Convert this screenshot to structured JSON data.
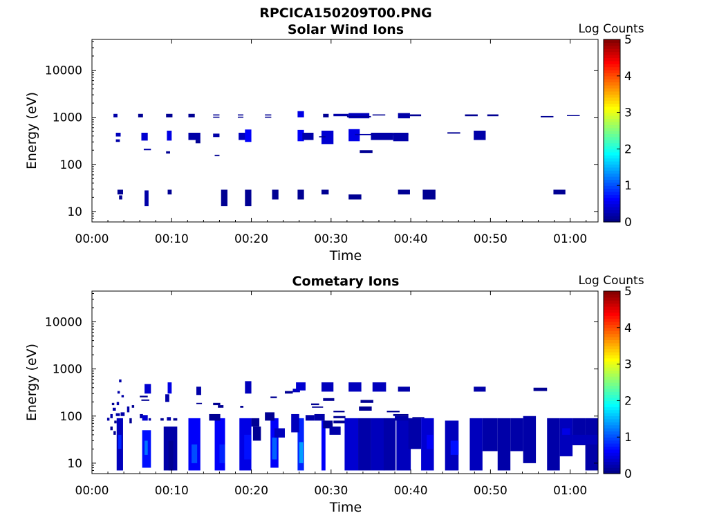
{
  "figure_title": "RPCICA150209T00.PNG",
  "chart_data": [
    {
      "type": "heatmap",
      "title": "Solar Wind Ions",
      "xlabel": "Time",
      "ylabel": "Energy (eV)",
      "yscale": "log",
      "xlim": [
        0,
        63.5
      ],
      "ylim": [
        6,
        45000
      ],
      "xticks": [
        "00:00",
        "00:10",
        "00:20",
        "00:30",
        "00:40",
        "00:50",
        "01:00"
      ],
      "yticks": [
        "10",
        "100",
        "1000",
        "10000"
      ],
      "colorbar": {
        "label": "Log Counts",
        "min": 0,
        "max": 5,
        "ticks": [
          "0",
          "1",
          "2",
          "3",
          "4",
          "5"
        ]
      },
      "grid": false,
      "cells": [
        [
          2.7,
          3.2,
          1000,
          1180,
          0.2
        ],
        [
          3.0,
          3.6,
          390,
          470,
          0.3
        ],
        [
          3.0,
          3.5,
          300,
          340,
          0.2
        ],
        [
          3.2,
          3.9,
          23,
          29,
          0.1
        ],
        [
          3.4,
          3.8,
          18,
          22,
          0.1
        ],
        [
          5.8,
          6.4,
          1000,
          1180,
          0.1
        ],
        [
          6.2,
          7.0,
          320,
          470,
          0.4
        ],
        [
          6.6,
          7.1,
          13,
          28,
          0.2
        ],
        [
          6.5,
          7.4,
          200,
          215,
          0.2
        ],
        [
          9.3,
          10.1,
          1000,
          1180,
          0.1
        ],
        [
          9.4,
          10.0,
          320,
          520,
          0.5
        ],
        [
          9.5,
          10.0,
          23,
          29,
          0.1
        ],
        [
          9.3,
          9.8,
          170,
          190,
          0.1
        ],
        [
          12.1,
          12.9,
          1000,
          1180,
          0.1
        ],
        [
          12.1,
          13.6,
          330,
          470,
          0.2
        ],
        [
          13.0,
          13.6,
          280,
          330,
          0.1
        ],
        [
          15.2,
          16.0,
          1100,
          1150,
          0.1
        ],
        [
          15.2,
          16.0,
          1000,
          1030,
          0.1
        ],
        [
          15.2,
          16.0,
          380,
          450,
          0.2
        ],
        [
          15.4,
          16.0,
          150,
          160,
          0.1
        ],
        [
          16.2,
          17.0,
          13,
          29,
          0.1
        ],
        [
          18.3,
          19.0,
          1100,
          1150,
          0.1
        ],
        [
          18.3,
          19.0,
          1000,
          1030,
          0.1
        ],
        [
          18.4,
          19.3,
          330,
          470,
          0.3
        ],
        [
          19.2,
          20.0,
          300,
          550,
          0.6
        ],
        [
          19.2,
          20.0,
          13,
          29,
          0.1
        ],
        [
          21.7,
          22.5,
          1100,
          1150,
          0.1
        ],
        [
          21.7,
          22.5,
          1000,
          1030,
          0.1
        ],
        [
          22.6,
          23.4,
          18,
          29,
          0.1
        ],
        [
          25.8,
          26.6,
          1000,
          1350,
          0.5
        ],
        [
          25.8,
          26.6,
          310,
          540,
          0.6
        ],
        [
          26.4,
          27.8,
          330,
          470,
          0.2
        ],
        [
          25.8,
          26.6,
          18,
          29,
          0.1
        ],
        [
          29.0,
          29.7,
          1000,
          1180,
          0.1
        ],
        [
          28.8,
          30.3,
          270,
          520,
          0.4
        ],
        [
          28.5,
          29.3,
          385,
          395,
          0.1
        ],
        [
          28.8,
          29.7,
          23,
          29,
          0.1
        ],
        [
          30.3,
          32.2,
          1050,
          1180,
          0.2
        ],
        [
          32.2,
          34.8,
          950,
          1230,
          0.3
        ],
        [
          32.0,
          35.0,
          1000,
          1060,
          0.1
        ],
        [
          32.2,
          33.6,
          310,
          560,
          0.5
        ],
        [
          33.0,
          39.7,
          420,
          440,
          0.2
        ],
        [
          33.6,
          35.2,
          175,
          200,
          0.1
        ],
        [
          32.2,
          33.8,
          18,
          23,
          0.1
        ],
        [
          35.2,
          36.8,
          1100,
          1150,
          0.1
        ],
        [
          35.0,
          37.8,
          330,
          470,
          0.2
        ],
        [
          37.8,
          39.7,
          310,
          470,
          0.2
        ],
        [
          38.4,
          39.9,
          950,
          1230,
          0.2
        ],
        [
          39.9,
          41.3,
          1050,
          1150,
          0.1
        ],
        [
          38.4,
          39.9,
          23,
          29,
          0.1
        ],
        [
          41.5,
          43.1,
          18,
          29,
          0.1
        ],
        [
          44.6,
          46.2,
          450,
          480,
          0.1
        ],
        [
          46.8,
          48.4,
          1050,
          1150,
          0.1
        ],
        [
          47.9,
          49.4,
          330,
          520,
          0.2
        ],
        [
          49.6,
          51.0,
          1050,
          1150,
          0.1
        ],
        [
          56.3,
          57.9,
          1000,
          1060,
          0.1
        ],
        [
          57.9,
          59.4,
          23,
          29,
          0.1
        ],
        [
          59.6,
          61.2,
          1060,
          1120,
          0.1
        ]
      ]
    },
    {
      "type": "heatmap",
      "title": "Cometary Ions",
      "xlabel": "Time",
      "ylabel": "Energy (eV)",
      "yscale": "log",
      "xlim": [
        0,
        63.5
      ],
      "ylim": [
        6,
        45000
      ],
      "xticks": [
        "00:00",
        "00:10",
        "00:20",
        "00:30",
        "00:40",
        "00:50",
        "01:00"
      ],
      "yticks": [
        "10",
        "100",
        "1000",
        "10000"
      ],
      "colorbar": {
        "label": "Log Counts",
        "min": 0,
        "max": 5,
        "ticks": [
          "0",
          "1",
          "2",
          "3",
          "4",
          "5"
        ]
      },
      "grid": false,
      "cells": [
        [
          1.9,
          2.2,
          80,
          92,
          0.2
        ],
        [
          2.3,
          2.6,
          90,
          110,
          0.2
        ],
        [
          2.6,
          3.0,
          130,
          150,
          0.2
        ],
        [
          2.8,
          3.1,
          70,
          80,
          0.1
        ],
        [
          3.1,
          3.4,
          170,
          200,
          0.2
        ],
        [
          3.2,
          3.5,
          300,
          340,
          0.2
        ],
        [
          3.4,
          3.7,
          520,
          600,
          0.2
        ],
        [
          3.7,
          4.0,
          250,
          280,
          0.2
        ],
        [
          2.5,
          2.8,
          170,
          190,
          0.1
        ],
        [
          2.3,
          2.6,
          50,
          60,
          0.1
        ],
        [
          2.7,
          3.0,
          40,
          48,
          0.1
        ],
        [
          3.1,
          3.9,
          7,
          90,
          0.3
        ],
        [
          3.3,
          3.7,
          20,
          40,
          0.8
        ],
        [
          3.6,
          4.1,
          100,
          120,
          0.2
        ],
        [
          3.0,
          3.5,
          100,
          115,
          0.2
        ],
        [
          4.4,
          4.7,
          120,
          160,
          0.2
        ],
        [
          4.7,
          5.0,
          70,
          90,
          0.1
        ],
        [
          5.0,
          5.3,
          150,
          170,
          0.1
        ],
        [
          6.6,
          7.4,
          300,
          480,
          0.4
        ],
        [
          6.0,
          7.0,
          250,
          270,
          0.1
        ],
        [
          6.2,
          7.2,
          210,
          225,
          0.1
        ],
        [
          6.0,
          6.4,
          90,
          110,
          0.2
        ],
        [
          6.3,
          7.0,
          80,
          105,
          0.4
        ],
        [
          7.1,
          7.4,
          80,
          90,
          0.2
        ],
        [
          6.3,
          7.4,
          8,
          50,
          0.7
        ],
        [
          6.6,
          7.0,
          15,
          30,
          1.2
        ],
        [
          9.2,
          9.7,
          200,
          290,
          0.2
        ],
        [
          9.5,
          10.0,
          300,
          520,
          0.5
        ],
        [
          9.4,
          9.9,
          80,
          95,
          0.2
        ],
        [
          10.2,
          10.7,
          80,
          90,
          0.1
        ],
        [
          8.6,
          9.0,
          80,
          90,
          0.1
        ],
        [
          9.0,
          10.7,
          7,
          60,
          0.2
        ],
        [
          9.6,
          10.2,
          7,
          30,
          0.1
        ],
        [
          12.1,
          13.6,
          7,
          90,
          0.6
        ],
        [
          12.5,
          13.2,
          10,
          25,
          1.0
        ],
        [
          13.1,
          13.7,
          280,
          420,
          0.2
        ],
        [
          13.1,
          13.8,
          180,
          190,
          0.1
        ],
        [
          15.2,
          16.1,
          170,
          190,
          0.1
        ],
        [
          15.4,
          16.7,
          7,
          90,
          0.6
        ],
        [
          16.0,
          16.7,
          10,
          25,
          0.8
        ],
        [
          15.8,
          16.5,
          150,
          170,
          0.1
        ],
        [
          14.7,
          16.1,
          80,
          110,
          0.1
        ],
        [
          18.6,
          19.0,
          150,
          165,
          0.1
        ],
        [
          18.5,
          20.0,
          7,
          90,
          0.5
        ],
        [
          19.1,
          20.0,
          12,
          40,
          0.7
        ],
        [
          19.2,
          20.0,
          300,
          550,
          0.3
        ],
        [
          20.0,
          21.0,
          60,
          90,
          0.1
        ],
        [
          20.2,
          21.2,
          30,
          60,
          0.1
        ],
        [
          22.4,
          23.4,
          8,
          90,
          0.6
        ],
        [
          22.6,
          23.2,
          12,
          35,
          1.1
        ],
        [
          22.4,
          23.2,
          240,
          260,
          0.1
        ],
        [
          21.7,
          22.9,
          80,
          120,
          0.1
        ],
        [
          22.9,
          24.2,
          35,
          55,
          0.3
        ],
        [
          24.2,
          25.2,
          300,
          340,
          0.1
        ],
        [
          25.2,
          26.1,
          320,
          380,
          0.3
        ],
        [
          25.8,
          26.6,
          7,
          90,
          0.8
        ],
        [
          26.0,
          26.5,
          10,
          28,
          1.4
        ],
        [
          25.6,
          26.8,
          350,
          520,
          0.4
        ],
        [
          25.0,
          26.0,
          45,
          110,
          0.3
        ],
        [
          26.8,
          27.9,
          80,
          105,
          0.2
        ],
        [
          27.5,
          28.5,
          170,
          185,
          0.1
        ],
        [
          27.6,
          29.0,
          150,
          160,
          0.1
        ],
        [
          28.8,
          29.3,
          7,
          80,
          0.6
        ],
        [
          28.8,
          30.3,
          330,
          520,
          0.3
        ],
        [
          29.0,
          30.4,
          210,
          240,
          0.1
        ],
        [
          27.9,
          29.2,
          80,
          110,
          0.2
        ],
        [
          29.0,
          30.2,
          55,
          80,
          0.1
        ],
        [
          29.8,
          31.2,
          40,
          60,
          0.2
        ],
        [
          30.3,
          31.7,
          120,
          130,
          0.1
        ],
        [
          30.3,
          31.8,
          90,
          100,
          0.1
        ],
        [
          30.3,
          31.8,
          70,
          80,
          0.1
        ],
        [
          31.7,
          33.4,
          7,
          90,
          0.4
        ],
        [
          32.2,
          33.8,
          330,
          520,
          0.3
        ],
        [
          33.5,
          35.1,
          130,
          160,
          0.1
        ],
        [
          33.7,
          35.3,
          190,
          220,
          0.1
        ],
        [
          33.4,
          35.0,
          7,
          90,
          0.2
        ],
        [
          35.0,
          36.7,
          7,
          90,
          0.3
        ],
        [
          35.2,
          36.9,
          330,
          520,
          0.3
        ],
        [
          36.6,
          38.1,
          7,
          90,
          0.2
        ],
        [
          37.0,
          38.6,
          120,
          130,
          0.1
        ],
        [
          38.2,
          40.0,
          7,
          90,
          0.3
        ],
        [
          38.4,
          39.9,
          330,
          420,
          0.2
        ],
        [
          38.0,
          39.7,
          80,
          100,
          0.2
        ],
        [
          37.8,
          39.7,
          100,
          110,
          0.1
        ],
        [
          39.7,
          41.3,
          20,
          90,
          0.2
        ],
        [
          40.2,
          41.7,
          90,
          95,
          0.1
        ],
        [
          41.3,
          42.9,
          7,
          90,
          0.4
        ],
        [
          42.0,
          42.8,
          20,
          40,
          0.6
        ],
        [
          44.3,
          46.0,
          7,
          80,
          0.3
        ],
        [
          45.0,
          46.0,
          15,
          30,
          0.7
        ],
        [
          47.4,
          49.0,
          7,
          90,
          0.3
        ],
        [
          47.9,
          49.4,
          330,
          420,
          0.2
        ],
        [
          49.0,
          50.9,
          18,
          90,
          0.2
        ],
        [
          50.9,
          52.5,
          7,
          90,
          0.2
        ],
        [
          52.5,
          54.1,
          18,
          90,
          0.2
        ],
        [
          54.1,
          55.7,
          10,
          100,
          0.2
        ],
        [
          55.4,
          57.1,
          340,
          400,
          0.1
        ],
        [
          57.1,
          58.7,
          7,
          90,
          0.2
        ],
        [
          58.7,
          60.3,
          14,
          90,
          0.3
        ],
        [
          59.0,
          60.0,
          40,
          55,
          0.5
        ],
        [
          60.3,
          61.9,
          24,
          90,
          0.2
        ],
        [
          61.9,
          63.5,
          7,
          90,
          0.2
        ],
        [
          60.3,
          63.5,
          25,
          40,
          0.3
        ]
      ]
    }
  ]
}
